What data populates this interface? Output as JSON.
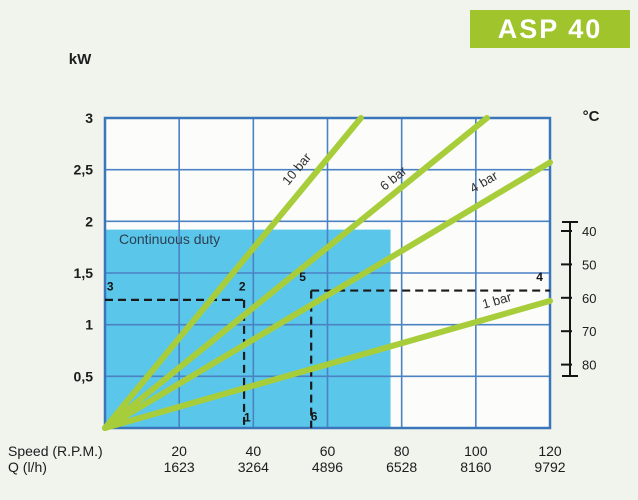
{
  "badge": {
    "label": "ASP 40",
    "bg_color": "#a0c52c",
    "text_color": "#ffffff"
  },
  "chart_data": {
    "type": "line",
    "title": "ASP 40",
    "x_axis": {
      "label": "Speed (R.P.M.)",
      "range": [
        0,
        120
      ],
      "ticks": [
        20,
        40,
        60,
        80,
        100,
        120
      ],
      "secondary_label": "Q (l/h)",
      "secondary_ticks": [
        "1623",
        "3264",
        "4896",
        "6528",
        "8160",
        "9792"
      ]
    },
    "y_axis_left": {
      "label": "kW",
      "range": [
        0,
        3
      ],
      "ticks": [
        3,
        2.5,
        2,
        1.5,
        1,
        0.5
      ],
      "tick_labels": [
        "3",
        "2,5",
        "2",
        "1,5",
        "1",
        "0,5"
      ]
    },
    "y_axis_right": {
      "label": "°C",
      "ticks": [
        "40",
        "50",
        "60",
        "70",
        "80"
      ]
    },
    "grid": {
      "on": true,
      "x_step": 20,
      "y_step": 0.5,
      "color": "#4a82c4",
      "border_color": "#3b76ba"
    },
    "series": [
      {
        "name": "10 bar",
        "color": "#a8cd3a",
        "points": [
          [
            0,
            0
          ],
          [
            69,
            3.0
          ]
        ]
      },
      {
        "name": "6 bar",
        "color": "#a8cd3a",
        "points": [
          [
            0,
            0
          ],
          [
            103,
            3.0
          ]
        ]
      },
      {
        "name": "4 bar",
        "color": "#a8cd3a",
        "points": [
          [
            0,
            0
          ],
          [
            120,
            2.57
          ]
        ]
      },
      {
        "name": "1 bar",
        "color": "#a8cd3a",
        "points": [
          [
            0,
            0
          ],
          [
            120,
            1.23
          ]
        ]
      }
    ],
    "region": {
      "label": "Continuous duty",
      "x_range": [
        0,
        77
      ],
      "y_range": [
        0,
        1.92
      ],
      "color": "#5ac7ea"
    },
    "reference_lines": [
      {
        "style": "dashed",
        "segments": [
          [
            [
              0,
              1.24
            ],
            [
              37.5,
              1.24
            ]
          ],
          [
            [
              37.5,
              1.24
            ],
            [
              37.5,
              0
            ]
          ]
        ]
      },
      {
        "style": "dashed",
        "segments": [
          [
            [
              55.6,
              1.33
            ],
            [
              120,
              1.33
            ]
          ],
          [
            [
              55.6,
              1.33
            ],
            [
              55.6,
              0
            ]
          ]
        ]
      }
    ],
    "point_markers": [
      {
        "label": "3",
        "x": 1.4,
        "y": 1.37
      },
      {
        "label": "2",
        "x": 37.0,
        "y": 1.37
      },
      {
        "label": "1",
        "x": 38.4,
        "y": 0.1
      },
      {
        "label": "5",
        "x": 53.3,
        "y": 1.46
      },
      {
        "label": "4",
        "x": 117.2,
        "y": 1.46
      },
      {
        "label": "6",
        "x": 56.4,
        "y": 0.11
      }
    ],
    "legend": {
      "position": "on-line-labels"
    }
  }
}
